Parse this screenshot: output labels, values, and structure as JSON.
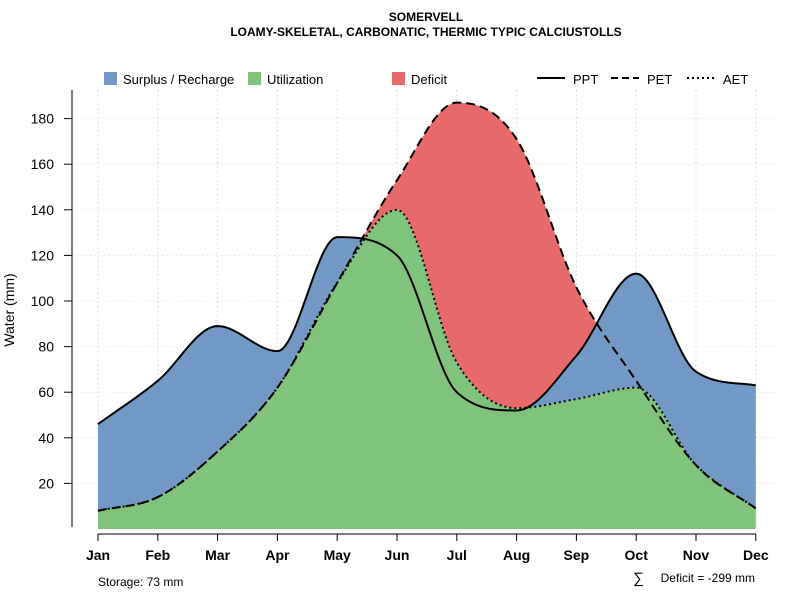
{
  "chart_data": {
    "type": "area",
    "title": "SOMERVELL",
    "subtitle": "LOAMY-SKELETAL, CARBONATIC, THERMIC TYPIC CALCIUSTOLLS",
    "xlabel": "",
    "ylabel": "Water (mm)",
    "ylim": [
      0,
      190
    ],
    "yticks": [
      20,
      40,
      60,
      80,
      100,
      120,
      140,
      160,
      180
    ],
    "categories": [
      "Jan",
      "Feb",
      "Mar",
      "Apr",
      "May",
      "Jun",
      "Jul",
      "Aug",
      "Sep",
      "Oct",
      "Nov",
      "Dec"
    ],
    "series": [
      {
        "name": "PPT",
        "linestyle": "solid",
        "values": [
          46,
          65,
          89,
          78,
          128,
          120,
          60,
          52,
          76,
          112,
          69,
          63
        ]
      },
      {
        "name": "PET",
        "linestyle": "dashed",
        "values": [
          8,
          14,
          34,
          62,
          108,
          153,
          187,
          171,
          106,
          65,
          28,
          9
        ]
      },
      {
        "name": "AET",
        "linestyle": "dotted",
        "values": [
          8,
          14,
          34,
          62,
          108,
          140,
          73,
          53,
          57,
          62,
          28,
          9
        ]
      }
    ],
    "areas": [
      {
        "name": "Surplus / Recharge",
        "color": "#7399C6"
      },
      {
        "name": "Utilization",
        "color": "#7FC47A"
      },
      {
        "name": "Deficit",
        "color": "#E96A6A"
      }
    ],
    "legend_position": "top",
    "grid": true,
    "annotations": {
      "storage": "Storage: 73 mm",
      "deficit_symbol": "∑",
      "deficit": "Deficit = -299 mm"
    }
  }
}
